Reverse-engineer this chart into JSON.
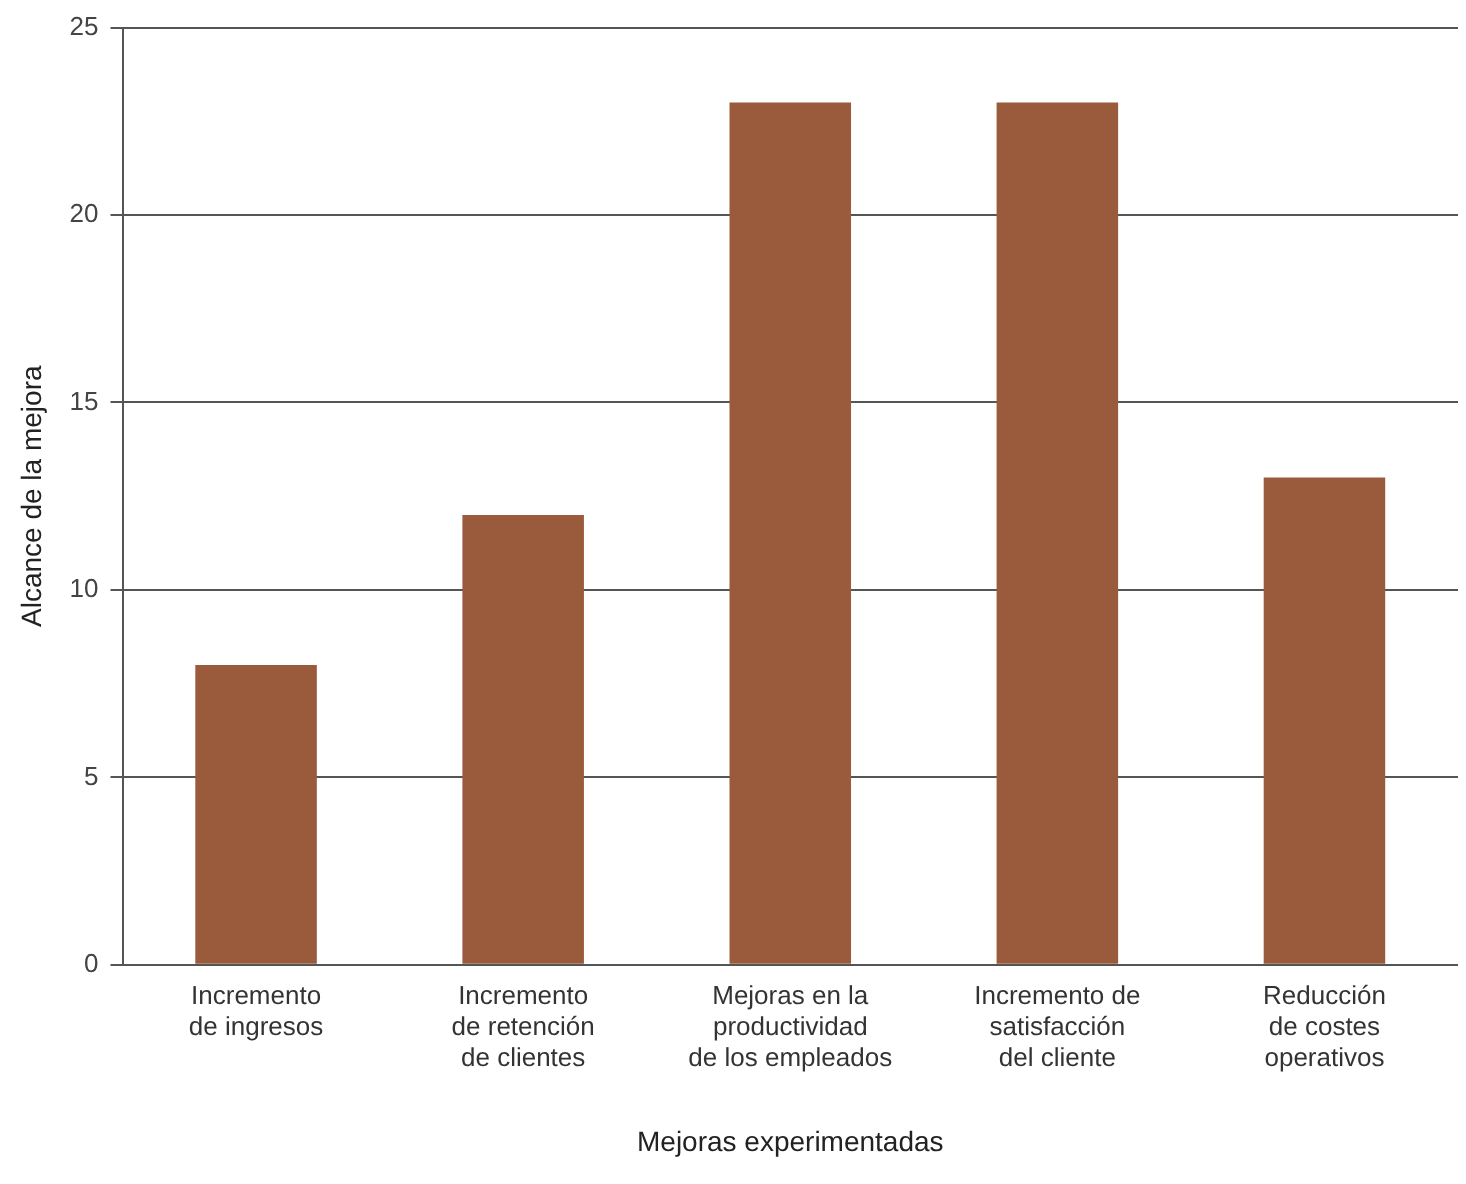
{
  "chart_data": {
    "type": "bar",
    "xlabel": "Mejoras experimentadas",
    "ylabel": "Alcance de la mejora",
    "categories": [
      "Incremento\nde ingresos",
      "Incremento\nde retención\nde clientes",
      "Mejoras en la\nproductividad\nde los empleados",
      "Incremento de\nsatisfacción\ndel cliente",
      "Reducción\nde costes\noperativos"
    ],
    "values": [
      8,
      12,
      23,
      23,
      13
    ],
    "color": "#9a5a3c",
    "ylim": [
      0,
      25
    ],
    "yticks": [
      0,
      5,
      10,
      15,
      20,
      25
    ],
    "grid": "y",
    "legend": false
  }
}
